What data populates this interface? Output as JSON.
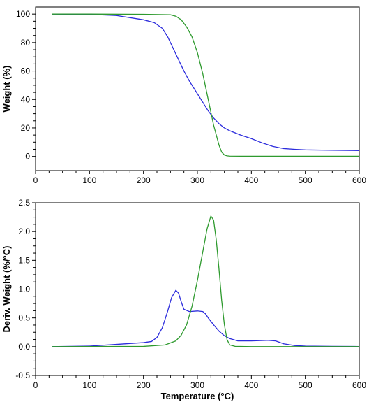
{
  "chart_data": [
    {
      "type": "line",
      "title": "",
      "xlabel": "",
      "ylabel": "Weight (%)",
      "xlim": [
        0,
        600
      ],
      "ylim": [
        -10,
        105
      ],
      "x_ticks": [
        "0",
        "100",
        "200",
        "300",
        "400",
        "500",
        "600"
      ],
      "y_ticks": [
        "0",
        "20",
        "40",
        "60",
        "80",
        "100"
      ],
      "grid": false,
      "legend": "none",
      "series": [
        {
          "color": "#2b2bdc",
          "x": [
            30,
            100,
            150,
            200,
            220,
            235,
            245,
            255,
            265,
            275,
            285,
            300,
            310,
            320,
            330,
            340,
            350,
            360,
            380,
            400,
            420,
            440,
            460,
            480,
            500,
            550,
            600
          ],
          "y": [
            100,
            99.8,
            99,
            96,
            94,
            90,
            84,
            76,
            68,
            60,
            53,
            44,
            38,
            32,
            27,
            23,
            20,
            18,
            15,
            12.5,
            9.5,
            7,
            5.5,
            5,
            4.6,
            4.3,
            4.1
          ]
        },
        {
          "color": "#2e9a2e",
          "x": [
            30,
            100,
            200,
            250,
            260,
            270,
            280,
            290,
            300,
            310,
            320,
            330,
            340,
            345,
            350,
            355,
            360,
            400,
            500,
            600
          ],
          "y": [
            100,
            100,
            99.8,
            99.5,
            98.5,
            96,
            91,
            84,
            73,
            58,
            40,
            22,
            8,
            3,
            1,
            0.4,
            0.2,
            0.1,
            0.1,
            0.1
          ]
        }
      ]
    },
    {
      "type": "line",
      "title": "",
      "xlabel": "Temperature (°C)",
      "ylabel": "Deriv. Weight (%/°C)",
      "xlim": [
        0,
        600
      ],
      "ylim": [
        -0.5,
        2.5
      ],
      "x_ticks": [
        "0",
        "100",
        "200",
        "300",
        "400",
        "500",
        "600"
      ],
      "y_ticks": [
        "-0.5",
        "0.0",
        "0.5",
        "1.0",
        "1.5",
        "2.0",
        "2.5"
      ],
      "grid": false,
      "legend": "none",
      "series": [
        {
          "color": "#2b2bdc",
          "x": [
            30,
            100,
            150,
            200,
            215,
            225,
            235,
            245,
            252,
            260,
            265,
            270,
            275,
            285,
            300,
            310,
            315,
            320,
            330,
            340,
            350,
            360,
            375,
            400,
            430,
            445,
            460,
            480,
            500,
            550,
            600
          ],
          "y": [
            0,
            0.01,
            0.04,
            0.07,
            0.09,
            0.16,
            0.33,
            0.62,
            0.85,
            0.98,
            0.93,
            0.78,
            0.65,
            0.61,
            0.62,
            0.61,
            0.57,
            0.5,
            0.38,
            0.27,
            0.19,
            0.14,
            0.1,
            0.1,
            0.11,
            0.1,
            0.05,
            0.02,
            0.01,
            0.005,
            0.003
          ]
        },
        {
          "color": "#2e9a2e",
          "x": [
            30,
            200,
            240,
            260,
            270,
            280,
            290,
            300,
            310,
            318,
            325,
            330,
            335,
            340,
            345,
            350,
            355,
            360,
            370,
            400,
            500,
            600
          ],
          "y": [
            0,
            0.005,
            0.03,
            0.1,
            0.2,
            0.38,
            0.7,
            1.15,
            1.65,
            2.05,
            2.27,
            2.2,
            1.85,
            1.35,
            0.8,
            0.38,
            0.12,
            0.03,
            0.005,
            0,
            0,
            0
          ]
        }
      ]
    }
  ]
}
